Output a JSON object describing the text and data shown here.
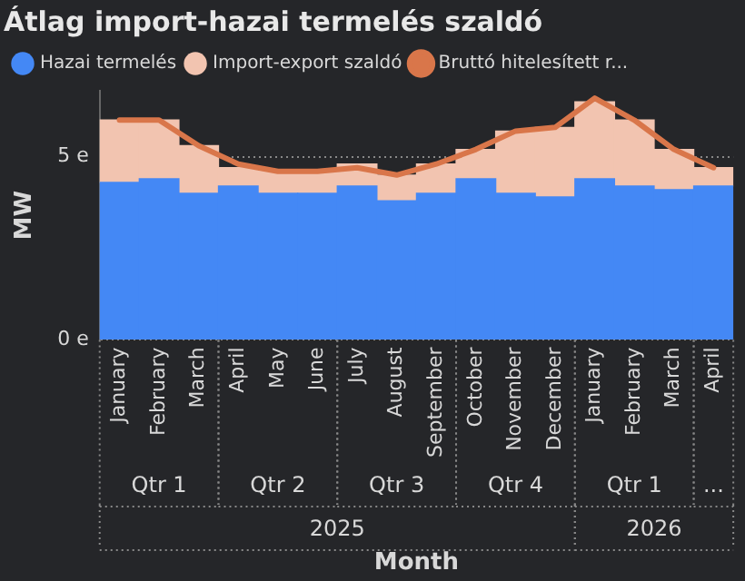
{
  "chart_data": {
    "type": "bar",
    "title": "Átlag import-hazai termelés szaldó",
    "xlabel": "Month",
    "ylabel": "MW",
    "categories": [
      "January",
      "February",
      "March",
      "April",
      "May",
      "June",
      "July",
      "August",
      "September",
      "October",
      "November",
      "December",
      "January",
      "February",
      "March",
      "April"
    ],
    "stacked": true,
    "series": [
      {
        "name": "Hazai termelés",
        "color": "#4488f5",
        "values": [
          4.3,
          4.4,
          4.0,
          4.2,
          4.0,
          4.0,
          4.2,
          3.8,
          4.0,
          4.4,
          4.0,
          3.9,
          4.4,
          4.2,
          4.1,
          4.2
        ]
      },
      {
        "name": "Import-export szaldó",
        "color": "#f2c4b0",
        "values": [
          1.7,
          1.6,
          1.3,
          0.5,
          0.6,
          0.6,
          0.6,
          0.7,
          0.8,
          0.8,
          1.7,
          1.9,
          2.1,
          1.8,
          1.1,
          0.5
        ]
      },
      {
        "name": "Bruttó hitelesített r...",
        "type": "line",
        "color": "#d9764a",
        "values": [
          6.0,
          6.0,
          5.3,
          4.8,
          4.6,
          4.6,
          4.7,
          4.5,
          4.8,
          5.2,
          5.7,
          5.8,
          6.6,
          6.0,
          5.2,
          4.7
        ]
      }
    ],
    "ylim": [
      0,
      6.8
    ],
    "yticks": [
      {
        "value": 0,
        "label": "0 e"
      },
      {
        "value": 5,
        "label": "5 e"
      }
    ],
    "grid": "y",
    "legend": "top left",
    "annotations": [
      "Qtr 1",
      "Qtr 2",
      "Qtr 3",
      "Qtr 4",
      "Qtr 1",
      "...",
      "2025",
      "2026"
    ]
  }
}
